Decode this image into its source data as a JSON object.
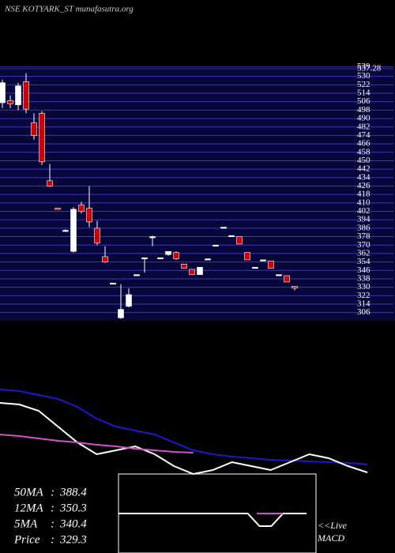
{
  "chart_data": {
    "type": "candlestick",
    "title": "NSE KOTYARK_ST munafasutra.org",
    "ylim": [
      299,
      544
    ],
    "yticks": [
      539,
      537.28,
      530,
      522,
      514,
      506,
      498,
      490,
      482,
      474,
      466,
      458,
      450,
      442,
      434,
      426,
      418,
      410,
      402,
      394,
      386,
      378,
      370,
      362,
      354,
      346,
      338,
      330,
      322,
      314,
      306
    ],
    "up_color": "#ffffff",
    "down_color": "#cc0000",
    "grid": true,
    "open": [
      505,
      507,
      503,
      525,
      486,
      495,
      431,
      405,
      384,
      364,
      408,
      405,
      386,
      359,
      334,
      301,
      312,
      342,
      357,
      378,
      358,
      361,
      363,
      352,
      347,
      342,
      357,
      370,
      387,
      379,
      378,
      363,
      349,
      356,
      355,
      342,
      341,
      331
    ],
    "high": [
      527,
      512,
      524,
      533,
      495,
      497,
      447,
      405,
      385,
      406,
      411,
      426,
      393,
      369,
      334,
      333,
      329,
      342,
      358,
      379,
      358,
      364,
      364,
      352,
      347,
      349,
      357,
      370,
      387,
      379,
      378,
      363,
      349,
      356,
      355,
      342,
      341,
      331
    ],
    "low": [
      500,
      500,
      498,
      495,
      470,
      446,
      425,
      404,
      384,
      363,
      400,
      387,
      370,
      353,
      334,
      300,
      311,
      342,
      344,
      369,
      358,
      360,
      356,
      348,
      342,
      342,
      357,
      370,
      387,
      379,
      371,
      356,
      349,
      356,
      348,
      342,
      335,
      327
    ],
    "close": [
      524,
      504,
      521,
      499,
      474,
      449,
      426,
      404,
      384,
      404,
      402,
      392,
      372,
      354,
      334,
      309,
      323,
      342,
      358,
      378,
      358,
      364,
      357,
      348,
      342,
      349,
      357,
      370,
      387,
      379,
      371,
      356,
      349,
      356,
      348,
      342,
      335,
      329.3
    ],
    "ma_panel": {
      "type": "line",
      "ylim": [
        0,
        110
      ],
      "series": [
        {
          "color": "#1a1acc",
          "values": [
            107,
            105,
            100,
            95,
            85,
            70,
            60,
            55,
            50,
            40,
            30,
            25,
            22,
            20,
            18,
            17,
            16,
            15,
            14,
            12
          ]
        },
        {
          "color": "#ffffff",
          "values": [
            90,
            88,
            80,
            60,
            40,
            25,
            30,
            35,
            25,
            10,
            0,
            5,
            15,
            10,
            5,
            15,
            25,
            20,
            10,
            2
          ]
        },
        {
          "color": "#cc55cc",
          "values": [
            50,
            48,
            45,
            42,
            40,
            37,
            35,
            32,
            30,
            28,
            27,
            null,
            null,
            null,
            null,
            null,
            null,
            null,
            null,
            null
          ]
        }
      ]
    },
    "macd": {
      "type": "line",
      "ylim": [
        -20,
        20
      ],
      "values": [
        0,
        0,
        0,
        0,
        0,
        0,
        0,
        0,
        0,
        0,
        0,
        0,
        -8,
        -8,
        0,
        0,
        0
      ]
    },
    "stats": [
      {
        "label": "50MA",
        "value": 388.4
      },
      {
        "label": "12MA",
        "value": 350.3
      },
      {
        "label": "5MA",
        "value": 340.4
      },
      {
        "label": "Price",
        "value": 329.3
      }
    ],
    "live_label": "<<Live",
    "macd_label": "MACD"
  }
}
